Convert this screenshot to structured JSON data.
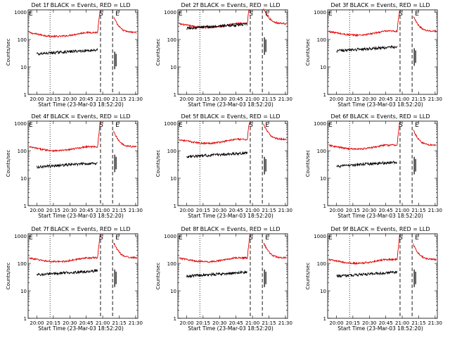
{
  "colors": {
    "events": "#000000",
    "lld": "#e00000",
    "axis": "#000000"
  },
  "chart_data": [
    {
      "type": "line",
      "title": "Det 1f BLACK = Events, RED = LLD",
      "xlabel": "Start Time (23-Mar-03 18:52:20)",
      "ylabel": "Counts/sec",
      "yscale": "log",
      "ylim": [
        1,
        1200
      ],
      "x_ticks": [
        "20:00",
        "20:15",
        "20:30",
        "20:45",
        "21:00",
        "21:15",
        "21:30"
      ],
      "y_ticks": [
        "1",
        "10",
        "100",
        "1000"
      ],
      "x_dotted": "20:12",
      "x_dashed": [
        "20:58",
        "21:09"
      ],
      "markers": [
        "S",
        "E"
      ],
      "series": [
        {
          "name": "LLD",
          "level": 180,
          "gap_after": 500
        },
        {
          "name": "Events",
          "level": 35,
          "level2": 15
        }
      ]
    },
    {
      "type": "line",
      "title": "Det 2f BLACK = Events, RED = LLD",
      "xlabel": "Start Time (23-Mar-03 18:52:20)",
      "ylabel": "Counts/sec",
      "yscale": "log",
      "ylim": [
        1,
        1200
      ],
      "x_ticks": [
        "20:00",
        "20:15",
        "20:30",
        "20:45",
        "21:00",
        "21:15",
        "21:30"
      ],
      "y_ticks": [
        "1",
        "10",
        "100",
        "1000"
      ],
      "x_dotted": "20:12",
      "x_dashed": [
        "20:58",
        "21:09"
      ],
      "markers": [
        "S",
        "E"
      ],
      "series": [
        {
          "name": "LLD",
          "level": 380,
          "gap_after": 500
        },
        {
          "name": "Events",
          "level": 300,
          "level2": 50
        }
      ]
    },
    {
      "type": "line",
      "title": "Det 3f BLACK = Events, RED = LLD",
      "xlabel": "Start Time (23-Mar-03 18:52:20)",
      "ylabel": "Counts/sec",
      "yscale": "log",
      "ylim": [
        1,
        1200
      ],
      "x_ticks": [
        "20:00",
        "20:15",
        "20:30",
        "20:45",
        "21:00",
        "21:15",
        "21:30"
      ],
      "y_ticks": [
        "1",
        "10",
        "100",
        "1000"
      ],
      "x_dotted": "20:12",
      "x_dashed": [
        "20:58",
        "21:09"
      ],
      "markers": [
        "S",
        "E"
      ],
      "series": [
        {
          "name": "LLD",
          "level": 200,
          "gap_after": 500
        },
        {
          "name": "Events",
          "level": 45,
          "level2": 20
        }
      ]
    },
    {
      "type": "line",
      "title": "Det 4f BLACK = Events, RED = LLD",
      "xlabel": "Start Time (23-Mar-03 18:52:20)",
      "ylabel": "Counts/sec",
      "yscale": "log",
      "ylim": [
        1,
        1200
      ],
      "x_ticks": [
        "20:00",
        "20:15",
        "20:30",
        "20:45",
        "21:00",
        "21:15",
        "21:30"
      ],
      "y_ticks": [
        "1",
        "10",
        "100",
        "1000"
      ],
      "x_dotted": "20:12",
      "x_dashed": [
        "20:58",
        "21:09"
      ],
      "markers": [
        "S",
        "E"
      ],
      "series": [
        {
          "name": "LLD",
          "level": 140,
          "gap_after": 500
        },
        {
          "name": "Events",
          "level": 30,
          "level2": 30
        }
      ]
    },
    {
      "type": "line",
      "title": "Det 5f BLACK = Events, RED = LLD",
      "xlabel": "Start Time (23-Mar-03 18:52:20)",
      "ylabel": "Counts/sec",
      "yscale": "log",
      "ylim": [
        1,
        1200
      ],
      "x_ticks": [
        "20:00",
        "20:15",
        "20:30",
        "20:45",
        "21:00",
        "21:15",
        "21:30"
      ],
      "y_ticks": [
        "1",
        "10",
        "100",
        "1000"
      ],
      "x_dotted": "20:12",
      "x_dashed": [
        "20:58",
        "21:09"
      ],
      "markers": [
        "S",
        "E"
      ],
      "series": [
        {
          "name": "LLD",
          "level": 260,
          "gap_after": 500
        },
        {
          "name": "Events",
          "level": 70,
          "level2": 25
        }
      ]
    },
    {
      "type": "line",
      "title": "Det 6f BLACK = Events, RED = LLD",
      "xlabel": "Start Time (23-Mar-03 18:52:20)",
      "ylabel": "Counts/sec",
      "yscale": "log",
      "ylim": [
        1,
        1200
      ],
      "x_ticks": [
        "20:00",
        "20:15",
        "20:30",
        "20:45",
        "21:00",
        "21:15",
        "21:30"
      ],
      "y_ticks": [
        "1",
        "10",
        "100",
        "1000"
      ],
      "x_dotted": "20:12",
      "x_dashed": [
        "20:58",
        "21:09"
      ],
      "markers": [
        "S",
        "E"
      ],
      "series": [
        {
          "name": "LLD",
          "level": 160,
          "gap_after": 500
        },
        {
          "name": "Events",
          "level": 32,
          "level2": 25
        }
      ]
    },
    {
      "type": "line",
      "title": "Det 7f BLACK = Events, RED = LLD",
      "xlabel": "Start Time (23-Mar-03 18:52:20)",
      "ylabel": "Counts/sec",
      "yscale": "log",
      "ylim": [
        1,
        1200
      ],
      "x_ticks": [
        "20:00",
        "20:15",
        "20:30",
        "20:45",
        "21:00",
        "21:15",
        "21:30"
      ],
      "y_ticks": [
        "1",
        "10",
        "100",
        "1000"
      ],
      "x_dotted": "20:12",
      "x_dashed": [
        "20:58",
        "21:09"
      ],
      "markers": [
        "S",
        "E"
      ],
      "series": [
        {
          "name": "LLD",
          "level": 160,
          "gap_after": 500
        },
        {
          "name": "Events",
          "level": 45,
          "level2": 25
        }
      ]
    },
    {
      "type": "line",
      "title": "Det 8f BLACK = Events, RED = LLD",
      "xlabel": "Start Time (23-Mar-03 18:52:20)",
      "ylabel": "Counts/sec",
      "yscale": "log",
      "ylim": [
        1,
        1200
      ],
      "x_ticks": [
        "20:00",
        "20:15",
        "20:30",
        "20:45",
        "21:00",
        "21:15",
        "21:30"
      ],
      "y_ticks": [
        "1",
        "10",
        "100",
        "1000"
      ],
      "x_dotted": "20:12",
      "x_dashed": [
        "20:58",
        "21:09"
      ],
      "markers": [
        "S",
        "E"
      ],
      "series": [
        {
          "name": "LLD",
          "level": 160,
          "gap_after": 500
        },
        {
          "name": "Events",
          "level": 40,
          "level2": 25
        }
      ]
    },
    {
      "type": "line",
      "title": "Det 9f BLACK = Events, RED = LLD",
      "xlabel": "Start Time (23-Mar-03 18:52:20)",
      "ylabel": "Counts/sec",
      "yscale": "log",
      "ylim": [
        1,
        1200
      ],
      "x_ticks": [
        "20:00",
        "20:15",
        "20:30",
        "20:45",
        "21:00",
        "21:15",
        "21:30"
      ],
      "y_ticks": [
        "1",
        "10",
        "100",
        "1000"
      ],
      "x_dotted": "20:12",
      "x_dashed": [
        "20:58",
        "21:09"
      ],
      "markers": [
        "S",
        "E"
      ],
      "series": [
        {
          "name": "LLD",
          "level": 140,
          "gap_after": 500
        },
        {
          "name": "Events",
          "level": 40,
          "level2": 25
        }
      ]
    }
  ]
}
